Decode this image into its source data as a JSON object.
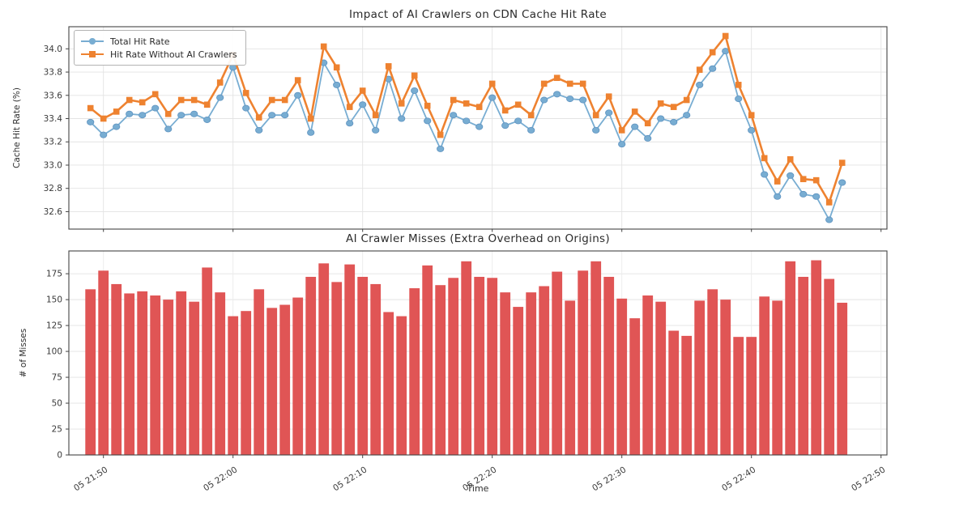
{
  "figure": {
    "background": "#ffffff",
    "spine_color": "#444444",
    "grid_color": "#e3e3e3",
    "tick_label_color": "#3a3a3a"
  },
  "chart_data": [
    {
      "type": "line",
      "title": "Impact of AI Crawlers on CDN Cache Hit Rate",
      "ylabel": "Cache Hit Rate (%)",
      "start_time": "05 21:49",
      "interval_minutes": 1,
      "ylim": [
        32.45,
        34.19
      ],
      "y_ticks": [
        32.6,
        32.8,
        33.0,
        33.2,
        33.4,
        33.6,
        33.8,
        34.0
      ],
      "grid": true,
      "legend_position": "upper left",
      "series": [
        {
          "name": "Total Hit Rate",
          "color": "#78add2",
          "marker": "circle",
          "values": [
            33.37,
            33.26,
            33.33,
            33.44,
            33.43,
            33.49,
            33.31,
            33.43,
            33.44,
            33.39,
            33.58,
            33.84,
            33.49,
            33.3,
            33.43,
            33.43,
            33.6,
            33.28,
            33.88,
            33.69,
            33.36,
            33.52,
            33.3,
            33.74,
            33.4,
            33.64,
            33.38,
            33.14,
            33.43,
            33.38,
            33.33,
            33.58,
            33.34,
            33.38,
            33.3,
            33.56,
            33.61,
            33.57,
            33.56,
            33.3,
            33.45,
            33.18,
            33.33,
            33.23,
            33.4,
            33.37,
            33.43,
            33.69,
            33.83,
            33.98,
            33.57,
            33.3,
            32.92,
            32.73,
            32.91,
            32.75,
            32.73,
            32.53,
            32.85
          ]
        },
        {
          "name": "Hit Rate Without AI Crawlers",
          "color": "#ee8230",
          "marker": "square",
          "values": [
            33.49,
            33.4,
            33.46,
            33.56,
            33.54,
            33.61,
            33.44,
            33.56,
            33.56,
            33.52,
            33.71,
            33.95,
            33.62,
            33.41,
            33.56,
            33.56,
            33.73,
            33.4,
            34.02,
            33.84,
            33.5,
            33.64,
            33.43,
            33.85,
            33.53,
            33.77,
            33.51,
            33.26,
            33.56,
            33.53,
            33.5,
            33.7,
            33.47,
            33.52,
            33.43,
            33.7,
            33.75,
            33.7,
            33.7,
            33.43,
            33.59,
            33.3,
            33.46,
            33.36,
            33.53,
            33.5,
            33.56,
            33.82,
            33.97,
            34.11,
            33.69,
            33.43,
            33.06,
            32.86,
            33.05,
            32.88,
            32.87,
            32.68,
            33.02
          ]
        }
      ]
    },
    {
      "type": "bar",
      "title": "AI Crawler Misses (Extra Overhead on Origins)",
      "ylabel": "# of Misses",
      "xlabel": "Time",
      "bar_color": "#e05555",
      "ylim": [
        0,
        197
      ],
      "y_ticks": [
        0,
        25,
        50,
        75,
        100,
        125,
        150,
        175
      ],
      "grid": true,
      "x_tick_labels": [
        "05 21:50",
        "05 22:00",
        "05 22:10",
        "05 22:20",
        "05 22:30",
        "05 22:40",
        "05 22:50"
      ],
      "x_tick_minute_offsets": [
        1,
        11,
        21,
        31,
        41,
        51,
        61
      ],
      "values": [
        160,
        178,
        165,
        156,
        158,
        154,
        150,
        158,
        148,
        181,
        157,
        134,
        139,
        160,
        142,
        145,
        152,
        172,
        185,
        167,
        184,
        172,
        165,
        138,
        134,
        161,
        183,
        164,
        171,
        187,
        172,
        171,
        157,
        143,
        157,
        163,
        177,
        149,
        178,
        187,
        172,
        151,
        132,
        154,
        148,
        120,
        115,
        149,
        160,
        150,
        114,
        114,
        153,
        149,
        187,
        172,
        188,
        170,
        147
      ]
    }
  ]
}
